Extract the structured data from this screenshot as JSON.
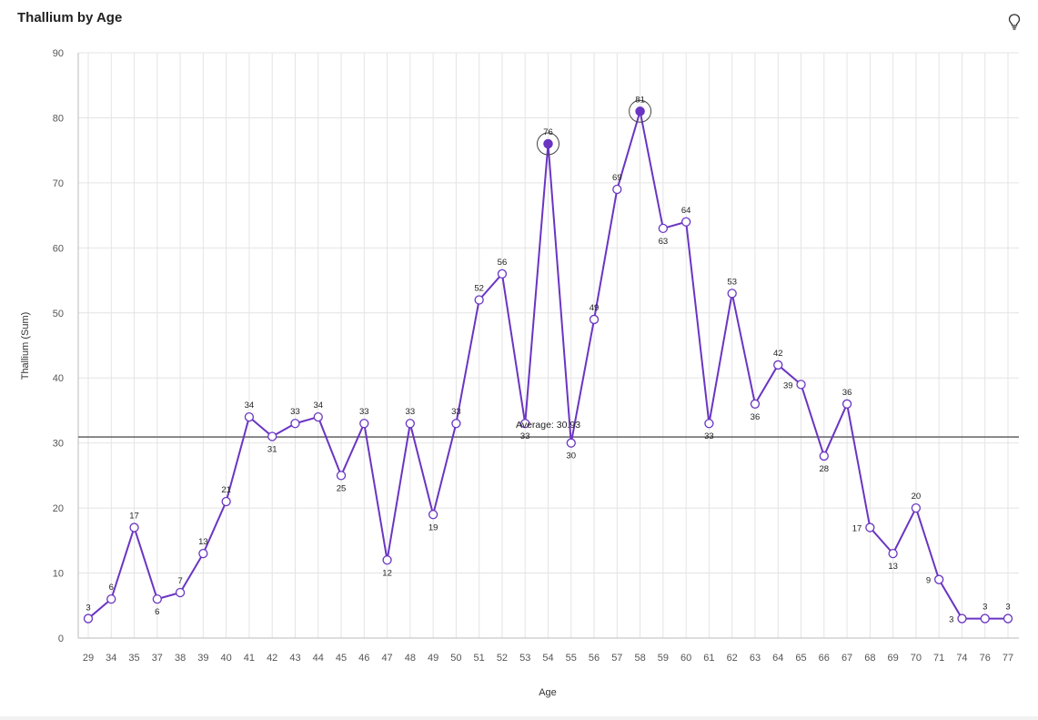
{
  "header": {
    "title": "Thallium by Age",
    "insight_icon": "lightbulb-icon"
  },
  "chart_data": {
    "type": "line",
    "title": "Thallium by Age",
    "xlabel": "Age",
    "ylabel": "Thallium (Sum)",
    "ylim": [
      0,
      90
    ],
    "yticks": [
      0,
      10,
      20,
      30,
      40,
      50,
      60,
      70,
      80,
      90
    ],
    "grid": true,
    "categories": [
      "29",
      "34",
      "35",
      "37",
      "38",
      "39",
      "40",
      "41",
      "42",
      "43",
      "44",
      "45",
      "46",
      "47",
      "48",
      "49",
      "50",
      "51",
      "52",
      "53",
      "54",
      "55",
      "56",
      "57",
      "58",
      "59",
      "60",
      "61",
      "62",
      "63",
      "64",
      "65",
      "66",
      "67",
      "68",
      "69",
      "70",
      "71",
      "74",
      "76",
      "77"
    ],
    "series": [
      {
        "values": [
          3,
          6,
          17,
          6,
          7,
          13,
          21,
          34,
          31,
          33,
          34,
          25,
          33,
          12,
          33,
          19,
          33,
          52,
          56,
          33,
          76,
          30,
          49,
          69,
          81,
          63,
          64,
          33,
          53,
          36,
          42,
          39,
          28,
          36,
          17,
          13,
          20,
          9,
          3,
          3,
          3
        ],
        "highlighted": [
          "54",
          "58"
        ]
      }
    ],
    "reference_line": {
      "label": "Average: 30.93",
      "value": 30.93
    },
    "colors": {
      "line": "#6a35c2",
      "highlight": "#6a35c2",
      "marker_fill": "#ffffff",
      "avg_line": "#555555",
      "grid": "#e4e4e4"
    }
  }
}
